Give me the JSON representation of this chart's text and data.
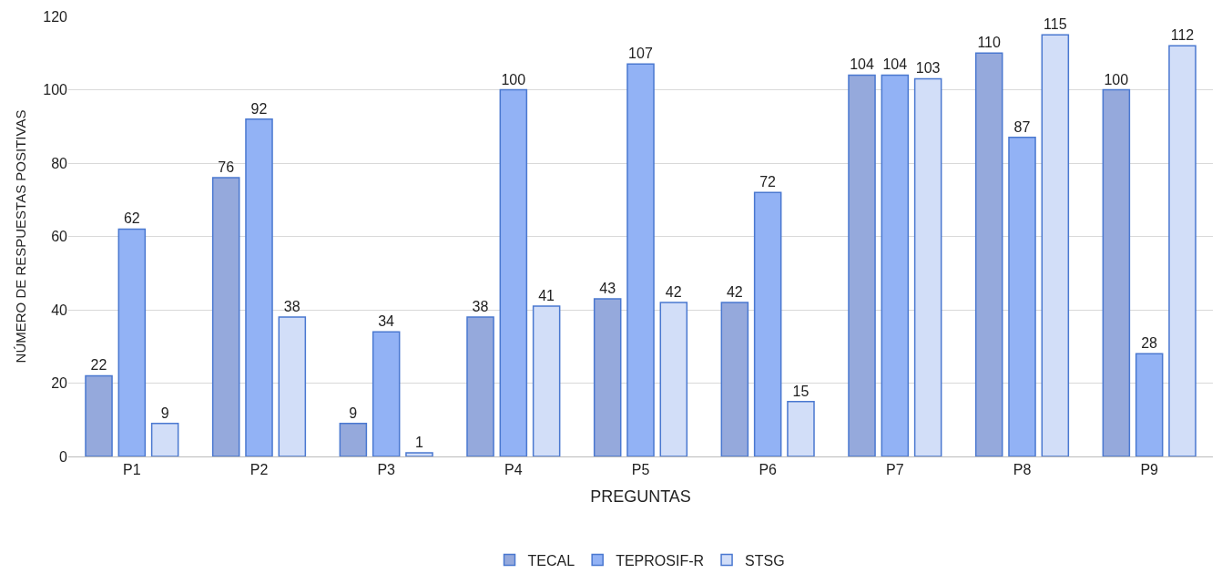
{
  "chart_data": {
    "type": "bar",
    "xlabel": "PREGUNTAS",
    "ylabel": "NÚMERO DE RESPUESTAS POSITIVAS",
    "categories": [
      "P1",
      "P2",
      "P3",
      "P4",
      "P5",
      "P6",
      "P7",
      "P8",
      "P9"
    ],
    "series": [
      {
        "name": "TECAL",
        "color": "#95a9dc",
        "values": [
          22,
          76,
          9,
          38,
          43,
          42,
          104,
          110,
          100
        ]
      },
      {
        "name": "TEPROSIF-R",
        "color": "#92b2f5",
        "values": [
          62,
          92,
          34,
          100,
          107,
          72,
          104,
          87,
          28
        ]
      },
      {
        "name": "STSG",
        "color": "#d2def8",
        "values": [
          9,
          38,
          1,
          41,
          42,
          15,
          103,
          115,
          112
        ]
      }
    ],
    "ylim": [
      0,
      120
    ],
    "yticks": [
      0,
      20,
      40,
      60,
      80,
      100,
      120
    ],
    "grid": "y",
    "legend": "bottom",
    "data_labels": true
  }
}
